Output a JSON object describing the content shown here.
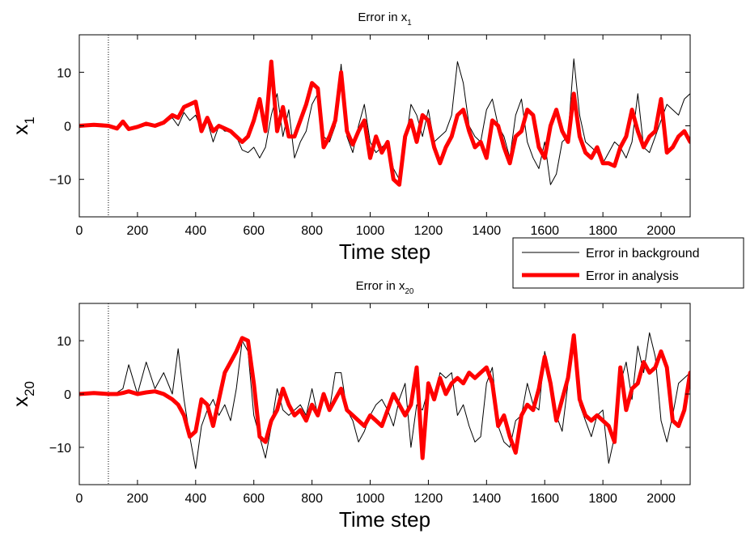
{
  "chart_data": [
    {
      "type": "line",
      "title": {
        "base": "Error in x",
        "sub": "1"
      },
      "xlabel": "Time step",
      "ylabel": {
        "base": "x",
        "sub": "1"
      },
      "xlim": [
        0,
        2100
      ],
      "ylim": [
        -17,
        17
      ],
      "xticks": [
        0,
        200,
        400,
        600,
        800,
        1000,
        1200,
        1400,
        1600,
        1800,
        2000
      ],
      "yticks": [
        -10,
        0,
        10
      ],
      "ytick_labels": [
        "−10",
        "0",
        "10"
      ],
      "vline_x": 100,
      "series": [
        {
          "name": "Error in background",
          "color": "#000000",
          "x": [
            0,
            50,
            100,
            130,
            150,
            170,
            200,
            230,
            260,
            290,
            320,
            340,
            360,
            380,
            400,
            420,
            440,
            460,
            480,
            500,
            520,
            540,
            560,
            580,
            600,
            620,
            640,
            660,
            680,
            700,
            720,
            740,
            760,
            780,
            800,
            820,
            840,
            860,
            880,
            900,
            920,
            940,
            960,
            980,
            1000,
            1020,
            1040,
            1060,
            1080,
            1100,
            1120,
            1140,
            1160,
            1180,
            1200,
            1220,
            1240,
            1260,
            1280,
            1300,
            1320,
            1340,
            1360,
            1380,
            1400,
            1420,
            1440,
            1460,
            1480,
            1500,
            1520,
            1540,
            1560,
            1580,
            1600,
            1620,
            1640,
            1660,
            1680,
            1700,
            1720,
            1740,
            1760,
            1780,
            1800,
            1820,
            1840,
            1860,
            1880,
            1900,
            1920,
            1940,
            1960,
            1980,
            2000,
            2020,
            2040,
            2060,
            2080,
            2100
          ],
          "y": [
            0,
            0.2,
            0,
            -0.3,
            0.5,
            -0.5,
            0,
            0.3,
            -0.2,
            0.5,
            1.5,
            0,
            2.5,
            1,
            2,
            -1,
            1,
            -3,
            0,
            -1,
            -1,
            -2,
            -4.5,
            -5,
            -4,
            -6,
            -4,
            2,
            6,
            -2,
            3,
            -6,
            -3,
            -1,
            4,
            6,
            -2,
            -3,
            0,
            11.5,
            -2,
            -5,
            0,
            4,
            -3,
            -5,
            -4,
            -3,
            -8,
            -10,
            -4,
            4,
            2,
            -2,
            3,
            -3,
            -2,
            -1,
            2,
            12,
            8,
            0,
            -2,
            -3,
            3,
            5,
            0,
            -2,
            -6,
            2,
            5,
            -3,
            -6,
            -8,
            -3,
            -11,
            -9,
            -3,
            -2,
            12.5,
            2,
            -3,
            -4,
            -5,
            -7,
            -5,
            -3,
            -4,
            -6,
            -3,
            6,
            -4,
            -5,
            -2,
            1,
            4,
            3,
            2,
            5,
            6
          ]
        },
        {
          "name": "Error in analysis",
          "color": "#ff0000",
          "x": [
            0,
            50,
            100,
            130,
            150,
            170,
            200,
            230,
            260,
            290,
            320,
            340,
            360,
            380,
            400,
            420,
            440,
            460,
            480,
            500,
            520,
            540,
            560,
            580,
            600,
            620,
            640,
            660,
            680,
            700,
            720,
            740,
            760,
            780,
            800,
            820,
            840,
            860,
            880,
            900,
            920,
            940,
            960,
            980,
            1000,
            1020,
            1040,
            1060,
            1080,
            1100,
            1120,
            1140,
            1160,
            1180,
            1200,
            1220,
            1240,
            1260,
            1280,
            1300,
            1320,
            1340,
            1360,
            1380,
            1400,
            1420,
            1440,
            1460,
            1480,
            1500,
            1520,
            1540,
            1560,
            1580,
            1600,
            1620,
            1640,
            1660,
            1680,
            1700,
            1720,
            1740,
            1760,
            1780,
            1800,
            1820,
            1840,
            1860,
            1880,
            1900,
            1920,
            1940,
            1960,
            1980,
            2000,
            2020,
            2040,
            2060,
            2080,
            2100
          ],
          "y": [
            0,
            0.2,
            0,
            -0.5,
            0.8,
            -0.6,
            -0.2,
            0.4,
            0,
            0.6,
            2,
            1.5,
            3.5,
            4,
            4.5,
            -1,
            1.5,
            -1,
            0,
            -0.5,
            -1,
            -2,
            -3,
            -2,
            1,
            5,
            -1,
            12,
            -1,
            3.5,
            -2,
            -2,
            1,
            4,
            8,
            7,
            -4,
            -2,
            1,
            10,
            -1,
            -3.5,
            -1,
            1,
            -6,
            -2,
            -5,
            -3,
            -10,
            -11,
            -2,
            1,
            -3,
            2,
            1,
            -4,
            -7,
            -4,
            -2,
            2,
            3,
            -1,
            -4,
            -3,
            -6,
            1,
            0,
            -4,
            -7,
            -2,
            -1,
            3,
            2,
            -4,
            -6,
            0,
            3,
            -1,
            -3,
            6,
            -2,
            -5,
            -6,
            -4,
            -7,
            -7,
            -7.5,
            -4,
            -2,
            3,
            -1,
            -4,
            -2,
            -1,
            5,
            -5,
            -4,
            -2,
            -1,
            -3
          ]
        }
      ]
    },
    {
      "type": "line",
      "title": {
        "base": "Error in x",
        "sub": "20"
      },
      "xlabel": "Time step",
      "ylabel": {
        "base": "x",
        "sub": "20"
      },
      "xlim": [
        0,
        2100
      ],
      "ylim": [
        -17,
        17
      ],
      "xticks": [
        0,
        200,
        400,
        600,
        800,
        1000,
        1200,
        1400,
        1600,
        1800,
        2000
      ],
      "yticks": [
        -10,
        0,
        10
      ],
      "ytick_labels": [
        "−10",
        "0",
        "10"
      ],
      "vline_x": 100,
      "series": [
        {
          "name": "Error in background",
          "color": "#000000",
          "x": [
            0,
            50,
            100,
            130,
            150,
            170,
            200,
            230,
            260,
            290,
            320,
            340,
            360,
            380,
            400,
            420,
            440,
            460,
            480,
            500,
            520,
            540,
            560,
            580,
            600,
            620,
            640,
            660,
            680,
            700,
            720,
            740,
            760,
            780,
            800,
            820,
            840,
            860,
            880,
            900,
            920,
            940,
            960,
            980,
            1000,
            1020,
            1040,
            1060,
            1080,
            1100,
            1120,
            1140,
            1160,
            1180,
            1200,
            1220,
            1240,
            1260,
            1280,
            1300,
            1320,
            1340,
            1360,
            1380,
            1400,
            1420,
            1440,
            1460,
            1480,
            1500,
            1520,
            1540,
            1560,
            1580,
            1600,
            1620,
            1640,
            1660,
            1680,
            1700,
            1720,
            1740,
            1760,
            1780,
            1800,
            1820,
            1840,
            1860,
            1880,
            1900,
            1920,
            1940,
            1960,
            1980,
            2000,
            2020,
            2040,
            2060,
            2080,
            2100
          ],
          "y": [
            0,
            0.2,
            0,
            0.3,
            1,
            5.5,
            0,
            6,
            1,
            4,
            0,
            8.5,
            -1,
            -8,
            -14,
            -6,
            -3,
            -1,
            -4,
            -2,
            -5,
            1,
            10,
            8,
            -4,
            -8,
            -12,
            -6,
            1,
            -3,
            -4,
            -3,
            -2,
            -4,
            1,
            -4,
            0,
            -3,
            4,
            4,
            -3,
            -5,
            -9,
            -7,
            -4,
            -2,
            -1,
            -3,
            -6,
            -1,
            2,
            -10,
            -2,
            -3,
            1,
            -1,
            4,
            3,
            4,
            -4,
            -2,
            -6,
            -9,
            -8,
            2,
            5,
            -6,
            -9,
            -10,
            -5,
            -4,
            2,
            -2,
            -3,
            8,
            3,
            -4,
            -7,
            2,
            10,
            -2,
            -5,
            -8,
            -4,
            -3,
            -13,
            -8,
            2,
            6,
            -1,
            9,
            4,
            11.5,
            7,
            -5,
            -9,
            -4,
            2,
            3,
            4
          ]
        },
        {
          "name": "Error in analysis",
          "color": "#ff0000",
          "x": [
            0,
            50,
            100,
            130,
            150,
            170,
            200,
            230,
            260,
            290,
            320,
            340,
            360,
            380,
            400,
            420,
            440,
            460,
            480,
            500,
            520,
            540,
            560,
            580,
            600,
            620,
            640,
            660,
            680,
            700,
            720,
            740,
            760,
            780,
            800,
            820,
            840,
            860,
            880,
            900,
            920,
            940,
            960,
            980,
            1000,
            1020,
            1040,
            1060,
            1080,
            1100,
            1120,
            1140,
            1160,
            1180,
            1200,
            1220,
            1240,
            1260,
            1280,
            1300,
            1320,
            1340,
            1360,
            1380,
            1400,
            1420,
            1440,
            1460,
            1480,
            1500,
            1520,
            1540,
            1560,
            1580,
            1600,
            1620,
            1640,
            1660,
            1680,
            1700,
            1720,
            1740,
            1760,
            1780,
            1800,
            1820,
            1840,
            1860,
            1880,
            1900,
            1920,
            1940,
            1960,
            1980,
            2000,
            2020,
            2040,
            2060,
            2080,
            2100
          ],
          "y": [
            0,
            0.2,
            0,
            0,
            0.2,
            0.5,
            0,
            0.3,
            0.5,
            0,
            -1,
            -2,
            -4,
            -8,
            -7,
            -1,
            -2,
            -6,
            -1,
            4,
            6,
            8,
            10.5,
            10,
            2,
            -8,
            -9,
            -5,
            -3,
            1,
            -2,
            -4,
            -3,
            -5,
            -2,
            -4,
            0,
            -3,
            -1,
            1,
            -3,
            -4,
            -5,
            -6,
            -4,
            -5,
            -6,
            -3,
            0,
            -2,
            -4,
            -2,
            5,
            -12,
            2,
            -1,
            3,
            0,
            2,
            3,
            2,
            4,
            3,
            4,
            5,
            2,
            -6,
            -4,
            -8,
            -11,
            -4,
            -2,
            -3,
            1,
            7,
            2,
            -5,
            -1,
            3,
            11,
            -1,
            -4,
            -5,
            -4,
            -5,
            -6,
            -9,
            5,
            -3,
            1,
            2,
            6,
            4,
            5,
            8,
            5,
            -5,
            -6,
            -3,
            4
          ]
        }
      ]
    }
  ],
  "legend": {
    "placement": "between-panels-right",
    "entries": [
      {
        "label": "Error in background",
        "color": "#000000",
        "style": "thin"
      },
      {
        "label": "Error in analysis",
        "color": "#ff0000",
        "style": "thick"
      }
    ]
  }
}
